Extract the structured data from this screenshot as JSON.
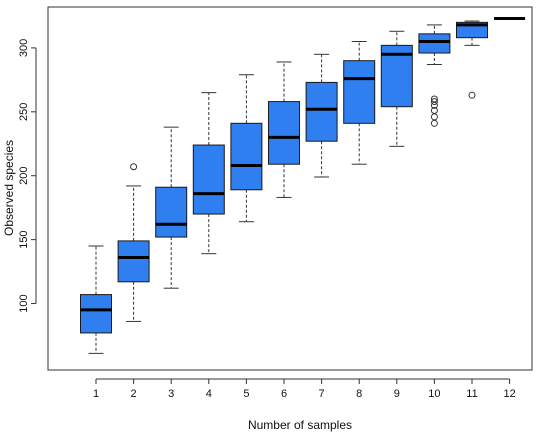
{
  "chart_data": {
    "type": "boxplot",
    "xlabel": "Number of samples",
    "ylabel": "Observed species",
    "title": "",
    "categories": [
      "1",
      "2",
      "3",
      "4",
      "5",
      "6",
      "7",
      "8",
      "9",
      "10",
      "11",
      "12"
    ],
    "ylim": [
      48,
      332
    ],
    "yticks": [
      100,
      150,
      200,
      250,
      300
    ],
    "grid": false,
    "legend": "none",
    "colors": {
      "box_fill": "#2f7ff0",
      "box_stroke": "#1a1a1a",
      "median": "#000000",
      "whisker": "#333333",
      "outlier": "#333333",
      "axis": "#333333"
    },
    "boxes": [
      {
        "category": "1",
        "whisker_low": 61,
        "q1": 77,
        "median": 95,
        "q3": 107,
        "whisker_high": 145,
        "outliers": []
      },
      {
        "category": "2",
        "whisker_low": 86,
        "q1": 117,
        "median": 136,
        "q3": 149,
        "whisker_high": 192,
        "outliers": [
          207
        ]
      },
      {
        "category": "3",
        "whisker_low": 112,
        "q1": 152,
        "median": 162,
        "q3": 191,
        "whisker_high": 238,
        "outliers": []
      },
      {
        "category": "4",
        "whisker_low": 139,
        "q1": 170,
        "median": 186,
        "q3": 224,
        "whisker_high": 265,
        "outliers": []
      },
      {
        "category": "5",
        "whisker_low": 164,
        "q1": 189,
        "median": 208,
        "q3": 241,
        "whisker_high": 279,
        "outliers": []
      },
      {
        "category": "6",
        "whisker_low": 183,
        "q1": 209,
        "median": 230,
        "q3": 258,
        "whisker_high": 289,
        "outliers": []
      },
      {
        "category": "7",
        "whisker_low": 199,
        "q1": 227,
        "median": 252,
        "q3": 273,
        "whisker_high": 295,
        "outliers": []
      },
      {
        "category": "8",
        "whisker_low": 209,
        "q1": 241,
        "median": 276,
        "q3": 290,
        "whisker_high": 305,
        "outliers": []
      },
      {
        "category": "9",
        "whisker_low": 223,
        "q1": 254,
        "median": 295,
        "q3": 302,
        "whisker_high": 313,
        "outliers": []
      },
      {
        "category": "10",
        "whisker_low": 287,
        "q1": 296,
        "median": 305,
        "q3": 311,
        "whisker_high": 318,
        "outliers": [
          241,
          246,
          251,
          255,
          258,
          260
        ]
      },
      {
        "category": "11",
        "whisker_low": 302,
        "q1": 308,
        "median": 318,
        "q3": 320,
        "whisker_high": 321,
        "outliers": [
          263
        ]
      },
      {
        "category": "12",
        "whisker_low": 323,
        "q1": 323,
        "median": 323,
        "q3": 323,
        "whisker_high": 323,
        "outliers": []
      }
    ]
  }
}
